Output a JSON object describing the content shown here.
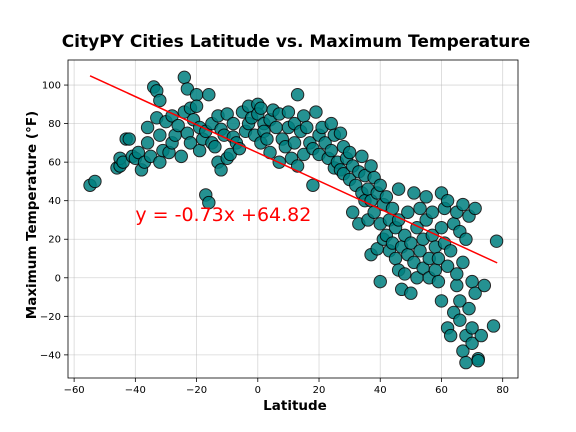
{
  "chart_data": {
    "type": "scatter",
    "title": "CityPY Cities Latitude vs. Maximum Temperature",
    "xlabel": "Latitude",
    "ylabel": "Maximum Temperature (°F)",
    "xlim": [
      -62,
      85
    ],
    "ylim": [
      -52,
      113
    ],
    "xticks": [
      -60,
      -40,
      -20,
      0,
      20,
      40,
      60,
      80
    ],
    "yticks": [
      -40,
      -20,
      0,
      20,
      40,
      60,
      80,
      100
    ],
    "grid": true,
    "colors": {
      "points": "#008080",
      "regression": "#ff0000"
    },
    "regression": {
      "slope": -0.73,
      "intercept": 64.82,
      "x_range": [
        -54.8,
        78.2
      ]
    },
    "annotation": {
      "text": "y = -0.73x +64.82",
      "x": -40,
      "y": 29
    },
    "points": [
      [
        -54.8,
        48
      ],
      [
        -53.2,
        50
      ],
      [
        -46,
        57
      ],
      [
        -45,
        58
      ],
      [
        -45,
        62
      ],
      [
        -44,
        60
      ],
      [
        -43,
        72
      ],
      [
        -42,
        72
      ],
      [
        -41,
        63
      ],
      [
        -40,
        62
      ],
      [
        -39,
        65
      ],
      [
        -38,
        56
      ],
      [
        -37,
        60
      ],
      [
        -36,
        70
      ],
      [
        -36,
        78
      ],
      [
        -35,
        63
      ],
      [
        -34,
        99
      ],
      [
        -33,
        97
      ],
      [
        -33,
        83
      ],
      [
        -32,
        92
      ],
      [
        -32,
        74
      ],
      [
        -32,
        60
      ],
      [
        -31,
        66
      ],
      [
        -30,
        81
      ],
      [
        -29,
        65
      ],
      [
        -28,
        84
      ],
      [
        -28,
        70
      ],
      [
        -27,
        74
      ],
      [
        -26,
        79
      ],
      [
        -25,
        63
      ],
      [
        -24,
        104
      ],
      [
        -24,
        86
      ],
      [
        -23,
        98
      ],
      [
        -23,
        75
      ],
      [
        -22,
        88
      ],
      [
        -22,
        70
      ],
      [
        -21,
        82
      ],
      [
        -20,
        95
      ],
      [
        -20,
        89
      ],
      [
        -19,
        78
      ],
      [
        -19,
        66
      ],
      [
        -18,
        72
      ],
      [
        -17,
        76
      ],
      [
        -17,
        43
      ],
      [
        -16,
        95
      ],
      [
        -16,
        39
      ],
      [
        -15,
        80
      ],
      [
        -15,
        70
      ],
      [
        -14,
        68
      ],
      [
        -13,
        84
      ],
      [
        -13,
        60
      ],
      [
        -12,
        56
      ],
      [
        -12,
        77
      ],
      [
        -11,
        74
      ],
      [
        -10,
        85
      ],
      [
        -10,
        62
      ],
      [
        -9,
        64
      ],
      [
        -8,
        80
      ],
      [
        -8,
        73
      ],
      [
        -7,
        70
      ],
      [
        -6,
        67
      ],
      [
        -5,
        86
      ],
      [
        -4,
        76
      ],
      [
        -3,
        89
      ],
      [
        -3,
        80
      ],
      [
        -2,
        83
      ],
      [
        -1,
        74
      ],
      [
        0,
        90
      ],
      [
        0,
        85
      ],
      [
        1,
        88
      ],
      [
        1,
        70
      ],
      [
        2,
        80
      ],
      [
        2,
        76
      ],
      [
        3,
        72
      ],
      [
        4,
        65
      ],
      [
        4,
        82
      ],
      [
        5,
        87
      ],
      [
        6,
        78
      ],
      [
        7,
        85
      ],
      [
        7,
        60
      ],
      [
        8,
        72
      ],
      [
        9,
        68
      ],
      [
        10,
        78
      ],
      [
        10,
        86
      ],
      [
        11,
        62
      ],
      [
        12,
        80
      ],
      [
        12,
        70
      ],
      [
        13,
        95
      ],
      [
        13,
        58
      ],
      [
        14,
        76
      ],
      [
        15,
        84
      ],
      [
        15,
        64
      ],
      [
        16,
        78
      ],
      [
        17,
        70
      ],
      [
        18,
        67
      ],
      [
        18,
        48
      ],
      [
        19,
        86
      ],
      [
        20,
        74
      ],
      [
        20,
        64
      ],
      [
        21,
        78
      ],
      [
        22,
        70
      ],
      [
        23,
        62
      ],
      [
        24,
        80
      ],
      [
        24,
        66
      ],
      [
        25,
        74
      ],
      [
        25,
        57
      ],
      [
        26,
        60
      ],
      [
        27,
        75
      ],
      [
        27,
        56
      ],
      [
        28,
        68
      ],
      [
        28,
        54
      ],
      [
        29,
        62
      ],
      [
        30,
        51
      ],
      [
        30,
        65
      ],
      [
        31,
        58
      ],
      [
        31,
        34
      ],
      [
        32,
        48
      ],
      [
        33,
        55
      ],
      [
        33,
        28
      ],
      [
        34,
        63
      ],
      [
        34,
        44
      ],
      [
        35,
        40
      ],
      [
        35,
        53
      ],
      [
        36,
        46
      ],
      [
        36,
        30
      ],
      [
        37,
        58
      ],
      [
        37,
        12
      ],
      [
        37,
        40
      ],
      [
        38,
        34
      ],
      [
        38,
        52
      ],
      [
        39,
        15
      ],
      [
        39,
        44
      ],
      [
        40,
        28
      ],
      [
        40,
        48
      ],
      [
        40,
        -2
      ],
      [
        41,
        38
      ],
      [
        41,
        20
      ],
      [
        42,
        22
      ],
      [
        42,
        42
      ],
      [
        43,
        30
      ],
      [
        43,
        14
      ],
      [
        44,
        18
      ],
      [
        44,
        36
      ],
      [
        45,
        10
      ],
      [
        45,
        26
      ],
      [
        46,
        46
      ],
      [
        46,
        4
      ],
      [
        46,
        30
      ],
      [
        47,
        16
      ],
      [
        47,
        -6
      ],
      [
        48,
        22
      ],
      [
        48,
        2
      ],
      [
        49,
        12
      ],
      [
        49,
        34
      ],
      [
        50,
        -8
      ],
      [
        50,
        18
      ],
      [
        51,
        8
      ],
      [
        51,
        44
      ],
      [
        52,
        26
      ],
      [
        52,
        0
      ],
      [
        53,
        14
      ],
      [
        53,
        36
      ],
      [
        54,
        20
      ],
      [
        54,
        5
      ],
      [
        55,
        30
      ],
      [
        55,
        42
      ],
      [
        56,
        10
      ],
      [
        56,
        0
      ],
      [
        57,
        22
      ],
      [
        57,
        34
      ],
      [
        58,
        4
      ],
      [
        58,
        16
      ],
      [
        59,
        -2
      ],
      [
        59,
        10
      ],
      [
        60,
        44
      ],
      [
        60,
        26
      ],
      [
        60,
        -12
      ],
      [
        61,
        18
      ],
      [
        61,
        36
      ],
      [
        62,
        -26
      ],
      [
        62,
        6
      ],
      [
        62,
        40
      ],
      [
        63,
        -30
      ],
      [
        63,
        14
      ],
      [
        64,
        -18
      ],
      [
        64,
        28
      ],
      [
        65,
        -4
      ],
      [
        65,
        2
      ],
      [
        65,
        34
      ],
      [
        66,
        -12
      ],
      [
        66,
        24
      ],
      [
        66,
        -22
      ],
      [
        67,
        -38
      ],
      [
        67,
        8
      ],
      [
        67,
        38
      ],
      [
        68,
        -44
      ],
      [
        68,
        -30
      ],
      [
        68,
        20
      ],
      [
        69,
        -16
      ],
      [
        69,
        32
      ],
      [
        70,
        -2
      ],
      [
        70,
        -26
      ],
      [
        70,
        -34
      ],
      [
        71,
        -8
      ],
      [
        71,
        36
      ],
      [
        72,
        -42
      ],
      [
        72,
        -43
      ],
      [
        73,
        -30
      ],
      [
        74,
        -4
      ],
      [
        77,
        -25
      ],
      [
        78,
        19
      ]
    ]
  }
}
